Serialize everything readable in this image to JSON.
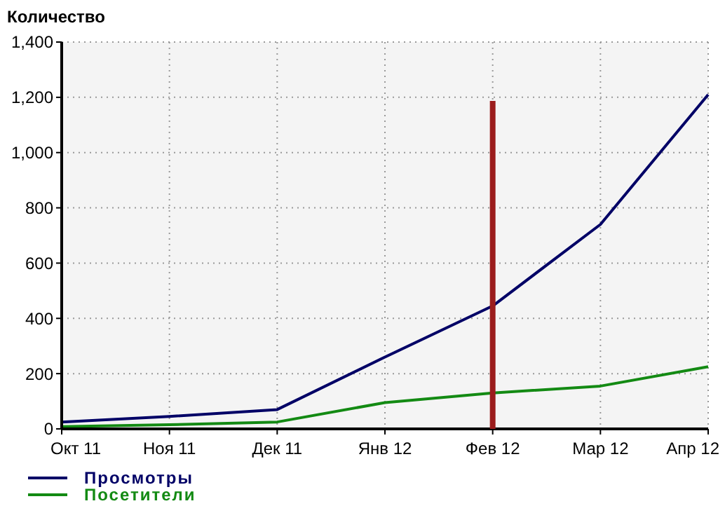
{
  "chart_data": {
    "type": "line",
    "ylabel": "Количество",
    "categories": [
      "Окт 11",
      "Ноя 11",
      "Дек 11",
      "Янв 12",
      "Фев 12",
      "Мар 12",
      "Апр 12"
    ],
    "series": [
      {
        "name": "Просмотры",
        "color": "#000066",
        "values": [
          25,
          45,
          70,
          260,
          445,
          740,
          1210
        ]
      },
      {
        "name": "Посетители",
        "color": "#138a13",
        "values": [
          8,
          15,
          25,
          95,
          130,
          155,
          225
        ]
      }
    ],
    "ylim": [
      0,
      1400
    ],
    "yticks": [
      0,
      200,
      400,
      600,
      800,
      {
        "value": 1000,
        "label": "1,000"
      },
      {
        "value": 1200,
        "label": "1,200"
      },
      {
        "value": 1400,
        "label": "1,400"
      }
    ],
    "grid": true,
    "legend": "bottom left",
    "marker": "none",
    "line_style": "solid",
    "ref_lines": [
      {
        "axis": "x",
        "value": "Фев 12",
        "color": "#9b1c1c"
      }
    ]
  }
}
